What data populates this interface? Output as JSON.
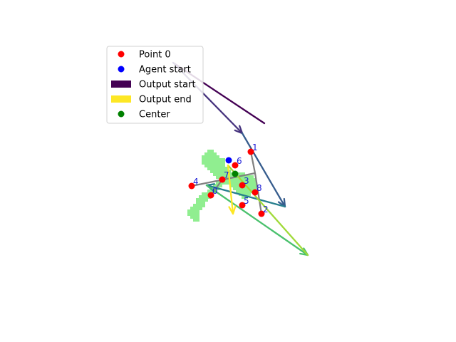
{
  "chart_data": {
    "type": "scatter",
    "title": "",
    "xlabel": "",
    "ylabel": "",
    "axes_visible": false,
    "grid": false,
    "xlim": [
      0,
      640
    ],
    "ylim": [
      480,
      0
    ],
    "legend": {
      "placement": "upper-left",
      "entries": [
        {
          "label": "Point 0",
          "kind": "dot",
          "color": "#ff0000"
        },
        {
          "label": "Agent start",
          "kind": "dot",
          "color": "#0000ff"
        },
        {
          "label": "Output start",
          "kind": "patch",
          "color": "#440154"
        },
        {
          "label": "Output end",
          "kind": "patch",
          "color": "#fde725"
        },
        {
          "label": "Center",
          "kind": "dot",
          "color": "#008000"
        }
      ]
    },
    "region_cells": [
      [
        295,
        214
      ],
      [
        291,
        218
      ],
      [
        299,
        218
      ],
      [
        287,
        222
      ],
      [
        295,
        222
      ],
      [
        303,
        222
      ],
      [
        287,
        226
      ],
      [
        295,
        226
      ],
      [
        303,
        226
      ],
      [
        311,
        226
      ],
      [
        291,
        230
      ],
      [
        299,
        230
      ],
      [
        307,
        230
      ],
      [
        295,
        234
      ],
      [
        303,
        234
      ],
      [
        311,
        234
      ],
      [
        299,
        238
      ],
      [
        307,
        238
      ],
      [
        315,
        238
      ],
      [
        303,
        242
      ],
      [
        311,
        242
      ],
      [
        319,
        242
      ],
      [
        307,
        246
      ],
      [
        315,
        246
      ],
      [
        323,
        246
      ],
      [
        331,
        246
      ],
      [
        339,
        246
      ],
      [
        311,
        250
      ],
      [
        319,
        250
      ],
      [
        327,
        250
      ],
      [
        335,
        250
      ],
      [
        343,
        250
      ],
      [
        351,
        250
      ],
      [
        315,
        254
      ],
      [
        323,
        254
      ],
      [
        331,
        254
      ],
      [
        339,
        254
      ],
      [
        347,
        254
      ],
      [
        355,
        254
      ],
      [
        327,
        258
      ],
      [
        335,
        258
      ],
      [
        343,
        258
      ],
      [
        351,
        258
      ],
      [
        331,
        262
      ],
      [
        339,
        262
      ],
      [
        347,
        262
      ],
      [
        355,
        262
      ],
      [
        335,
        266
      ],
      [
        343,
        266
      ],
      [
        351,
        266
      ],
      [
        339,
        270
      ],
      [
        347,
        270
      ],
      [
        343,
        274
      ],
      [
        307,
        258
      ],
      [
        303,
        262
      ],
      [
        299,
        266
      ],
      [
        295,
        270
      ],
      [
        291,
        274
      ],
      [
        287,
        278
      ],
      [
        283,
        282
      ],
      [
        279,
        286
      ],
      [
        275,
        290
      ],
      [
        271,
        294
      ],
      [
        267,
        298
      ],
      [
        271,
        302
      ],
      [
        275,
        306
      ],
      [
        279,
        282
      ],
      [
        283,
        278
      ],
      [
        287,
        274
      ],
      [
        279,
        290
      ],
      [
        275,
        298
      ],
      [
        283,
        286
      ]
    ],
    "points": [
      {
        "label": "0",
        "x": 296,
        "y": 274
      },
      {
        "label": "1",
        "x": 352,
        "y": 213
      },
      {
        "label": "2",
        "x": 367,
        "y": 300
      },
      {
        "label": "3",
        "x": 340,
        "y": 260
      },
      {
        "label": "4",
        "x": 269,
        "y": 261
      },
      {
        "label": "5",
        "x": 340,
        "y": 288
      },
      {
        "label": "6",
        "x": 330,
        "y": 232
      },
      {
        "label": "7",
        "x": 312,
        "y": 252
      },
      {
        "label": "8",
        "x": 358,
        "y": 270
      }
    ],
    "agent_start": {
      "x": 321,
      "y": 225
    },
    "center": {
      "x": 330,
      "y": 244
    },
    "gray_segments": [
      [
        [
          352,
          213
        ],
        [
          358,
          243
        ]
      ],
      [
        [
          358,
          243
        ],
        [
          367,
          300
        ]
      ],
      [
        [
          269,
          261
        ],
        [
          358,
          243
        ]
      ],
      [
        [
          312,
          252
        ],
        [
          296,
          274
        ]
      ]
    ],
    "arrows": [
      {
        "from": [
          243,
          88
        ],
        "to": [
          371,
          173
        ],
        "color": "#440154",
        "head": false
      },
      {
        "from": [
          243,
          88
        ],
        "to": [
          340,
          187
        ],
        "color": "#46337e",
        "head": true
      },
      {
        "from": [
          340,
          187
        ],
        "to": [
          400,
          290
        ],
        "color": "#365c8d",
        "head": true
      },
      {
        "from": [
          400,
          290
        ],
        "to": [
          290,
          260
        ],
        "color": "#277f8e",
        "head": true
      },
      {
        "from": [
          290,
          260
        ],
        "to": [
          432,
          358
        ],
        "color": "#4ac16d",
        "head": true
      },
      {
        "from": [
          432,
          358
        ],
        "to": [
          320,
          232
        ],
        "color": "#a0da39",
        "head": false
      },
      {
        "from": [
          320,
          232
        ],
        "to": [
          327,
          300
        ],
        "color": "#fde725",
        "head": true
      }
    ]
  }
}
